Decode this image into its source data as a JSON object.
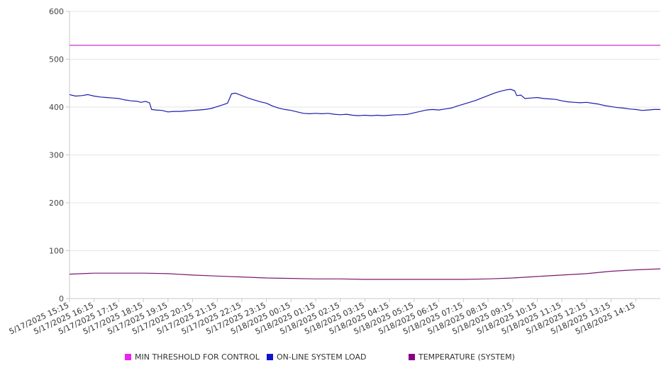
{
  "chart_data": {
    "type": "line",
    "title": "",
    "xlabel": "",
    "ylabel": "",
    "ylim": [
      0,
      600
    ],
    "yticks": [
      0,
      100,
      200,
      300,
      400,
      500,
      600
    ],
    "grid": true,
    "legend_position": "bottom",
    "x_tick_labels": [
      "5/17/2025 15:15",
      "5/17/2025 16:15",
      "5/17/2025 17:15",
      "5/17/2025 18:15",
      "5/17/2025 19:15",
      "5/17/2025 20:15",
      "5/17/2025 21:15",
      "5/17/2025 22:15",
      "5/17/2025 23:15",
      "5/18/2025 00:15",
      "5/18/2025 01:15",
      "5/18/2025 02:15",
      "5/18/2025 03:15",
      "5/18/2025 04:15",
      "5/18/2025 05:15",
      "5/18/2025 06:15",
      "5/18/2025 07:15",
      "5/18/2025 08:15",
      "5/18/2025 09:15",
      "5/18/2025 10:15",
      "5/18/2025 11:15",
      "5/18/2025 12:15",
      "5/18/2025 13:15",
      "5/18/2025 14:15"
    ],
    "series": [
      {
        "name": "MIN THRESHOLD FOR CONTROL",
        "color": "#cc33cc",
        "legend_color": "#ee22ee",
        "points": [
          [
            "5/17/2025 15:15",
            529
          ],
          [
            "5/18/2025 15:15",
            529
          ]
        ]
      },
      {
        "name": "ON-LINE SYSTEM LOAD",
        "color": "#1c1cb0",
        "legend_color": "#1111cc",
        "points": [
          [
            "5/17/2025 15:15",
            426
          ],
          [
            "5/17/2025 15:30",
            423
          ],
          [
            "5/17/2025 15:45",
            424
          ],
          [
            "5/17/2025 16:00",
            426
          ],
          [
            "5/17/2025 16:15",
            423
          ],
          [
            "5/17/2025 16:30",
            421
          ],
          [
            "5/17/2025 16:45",
            420
          ],
          [
            "5/17/2025 17:00",
            419
          ],
          [
            "5/17/2025 17:15",
            418
          ],
          [
            "5/17/2025 17:30",
            415
          ],
          [
            "5/17/2025 17:45",
            413
          ],
          [
            "5/17/2025 18:00",
            412
          ],
          [
            "5/17/2025 18:10",
            410
          ],
          [
            "5/17/2025 18:20",
            412
          ],
          [
            "5/17/2025 18:30",
            409
          ],
          [
            "5/17/2025 18:35",
            395
          ],
          [
            "5/17/2025 18:45",
            394
          ],
          [
            "5/17/2025 19:00",
            393
          ],
          [
            "5/17/2025 19:15",
            390
          ],
          [
            "5/17/2025 19:30",
            391
          ],
          [
            "5/17/2025 19:45",
            391
          ],
          [
            "5/17/2025 20:00",
            392
          ],
          [
            "5/17/2025 20:15",
            393
          ],
          [
            "5/17/2025 20:30",
            394
          ],
          [
            "5/17/2025 20:45",
            395
          ],
          [
            "5/17/2025 21:00",
            397
          ],
          [
            "5/17/2025 21:15",
            401
          ],
          [
            "5/17/2025 21:30",
            405
          ],
          [
            "5/17/2025 21:40",
            408
          ],
          [
            "5/17/2025 21:50",
            428
          ],
          [
            "5/17/2025 22:00",
            429
          ],
          [
            "5/17/2025 22:15",
            424
          ],
          [
            "5/17/2025 22:30",
            419
          ],
          [
            "5/17/2025 22:45",
            415
          ],
          [
            "5/17/2025 23:00",
            411
          ],
          [
            "5/17/2025 23:15",
            408
          ],
          [
            "5/17/2025 23:30",
            402
          ],
          [
            "5/17/2025 23:45",
            398
          ],
          [
            "5/18/2025 00:00",
            395
          ],
          [
            "5/18/2025 00:15",
            393
          ],
          [
            "5/18/2025 00:30",
            390
          ],
          [
            "5/18/2025 00:45",
            387
          ],
          [
            "5/18/2025 01:00",
            386
          ],
          [
            "5/18/2025 01:15",
            387
          ],
          [
            "5/18/2025 01:30",
            386
          ],
          [
            "5/18/2025 01:45",
            387
          ],
          [
            "5/18/2025 02:00",
            385
          ],
          [
            "5/18/2025 02:15",
            384
          ],
          [
            "5/18/2025 02:30",
            385
          ],
          [
            "5/18/2025 02:45",
            383
          ],
          [
            "5/18/2025 03:00",
            382
          ],
          [
            "5/18/2025 03:15",
            383
          ],
          [
            "5/18/2025 03:30",
            382
          ],
          [
            "5/18/2025 03:45",
            383
          ],
          [
            "5/18/2025 04:00",
            382
          ],
          [
            "5/18/2025 04:15",
            383
          ],
          [
            "5/18/2025 04:30",
            384
          ],
          [
            "5/18/2025 04:45",
            384
          ],
          [
            "5/18/2025 05:00",
            385
          ],
          [
            "5/18/2025 05:15",
            388
          ],
          [
            "5/18/2025 05:30",
            391
          ],
          [
            "5/18/2025 05:45",
            394
          ],
          [
            "5/18/2025 06:00",
            395
          ],
          [
            "5/18/2025 06:15",
            394
          ],
          [
            "5/18/2025 06:30",
            396
          ],
          [
            "5/18/2025 06:45",
            398
          ],
          [
            "5/18/2025 07:00",
            402
          ],
          [
            "5/18/2025 07:15",
            406
          ],
          [
            "5/18/2025 07:30",
            410
          ],
          [
            "5/18/2025 07:45",
            414
          ],
          [
            "5/18/2025 08:00",
            419
          ],
          [
            "5/18/2025 08:15",
            424
          ],
          [
            "5/18/2025 08:30",
            429
          ],
          [
            "5/18/2025 08:45",
            433
          ],
          [
            "5/18/2025 09:00",
            436
          ],
          [
            "5/18/2025 09:10",
            437
          ],
          [
            "5/18/2025 09:20",
            434
          ],
          [
            "5/18/2025 09:25",
            424
          ],
          [
            "5/18/2025 09:35",
            425
          ],
          [
            "5/18/2025 09:45",
            418
          ],
          [
            "5/18/2025 10:00",
            419
          ],
          [
            "5/18/2025 10:15",
            420
          ],
          [
            "5/18/2025 10:30",
            418
          ],
          [
            "5/18/2025 10:45",
            417
          ],
          [
            "5/18/2025 11:00",
            416
          ],
          [
            "5/18/2025 11:15",
            413
          ],
          [
            "5/18/2025 11:30",
            411
          ],
          [
            "5/18/2025 11:45",
            410
          ],
          [
            "5/18/2025 12:00",
            409
          ],
          [
            "5/18/2025 12:15",
            410
          ],
          [
            "5/18/2025 12:30",
            408
          ],
          [
            "5/18/2025 12:45",
            406
          ],
          [
            "5/18/2025 13:00",
            403
          ],
          [
            "5/18/2025 13:15",
            401
          ],
          [
            "5/18/2025 13:30",
            399
          ],
          [
            "5/18/2025 13:45",
            398
          ],
          [
            "5/18/2025 14:00",
            396
          ],
          [
            "5/18/2025 14:15",
            395
          ],
          [
            "5/18/2025 14:30",
            393
          ],
          [
            "5/18/2025 14:45",
            394
          ],
          [
            "5/18/2025 15:00",
            395
          ],
          [
            "5/18/2025 15:15",
            395
          ]
        ]
      },
      {
        "name": "TEMPERATURE (SYSTEM)",
        "color": "#7a1a6e",
        "legend_color": "#880088",
        "points": [
          [
            "5/17/2025 15:15",
            51
          ],
          [
            "5/17/2025 16:15",
            53
          ],
          [
            "5/17/2025 17:15",
            53
          ],
          [
            "5/17/2025 18:15",
            53
          ],
          [
            "5/17/2025 19:15",
            52
          ],
          [
            "5/17/2025 20:15",
            49
          ],
          [
            "5/17/2025 21:15",
            47
          ],
          [
            "5/17/2025 22:15",
            45
          ],
          [
            "5/17/2025 23:15",
            43
          ],
          [
            "5/18/2025 00:15",
            42
          ],
          [
            "5/18/2025 01:15",
            41
          ],
          [
            "5/18/2025 02:15",
            41
          ],
          [
            "5/18/2025 03:15",
            40
          ],
          [
            "5/18/2025 04:15",
            40
          ],
          [
            "5/18/2025 05:15",
            40
          ],
          [
            "5/18/2025 06:15",
            40
          ],
          [
            "5/18/2025 07:15",
            40
          ],
          [
            "5/18/2025 08:15",
            41
          ],
          [
            "5/18/2025 09:15",
            43
          ],
          [
            "5/18/2025 10:15",
            46
          ],
          [
            "5/18/2025 11:15",
            49
          ],
          [
            "5/18/2025 12:15",
            52
          ],
          [
            "5/18/2025 13:15",
            57
          ],
          [
            "5/18/2025 14:15",
            60
          ],
          [
            "5/18/2025 15:15",
            62
          ]
        ]
      }
    ]
  }
}
